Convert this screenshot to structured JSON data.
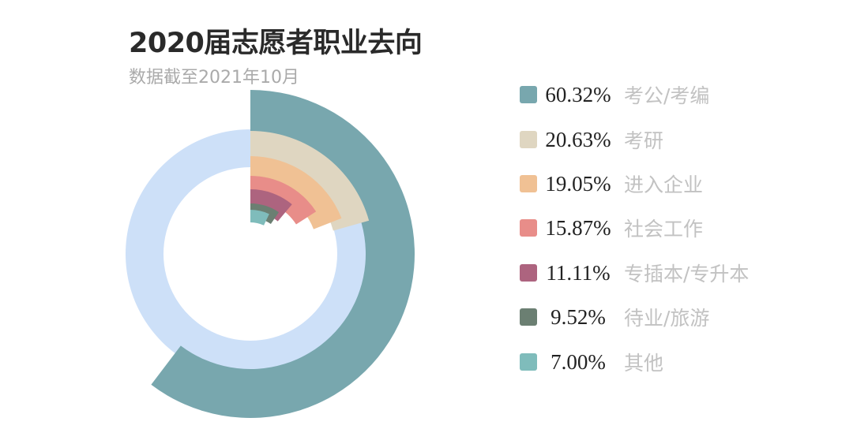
{
  "chart_data": {
    "type": "radial-bar",
    "title": "2020届志愿者职业去向",
    "subtitle": "数据截至2021年10月",
    "background_ring_color": "#cde0f8",
    "series": [
      {
        "name": "考公/考编",
        "value": 60.32,
        "label": "60.32%",
        "color": "#78a7ae"
      },
      {
        "name": "考研",
        "value": 20.63,
        "label": "20.63%",
        "color": "#dfd6c1"
      },
      {
        "name": "进入企业",
        "value": 19.05,
        "label": "19.05%",
        "color": "#f0c194"
      },
      {
        "name": "社会工作",
        "value": 15.87,
        "label": "15.87%",
        "color": "#e88d89"
      },
      {
        "name": "专插本/专升本",
        "value": 11.11,
        "label": "11.11%",
        "color": "#ad647f"
      },
      {
        "name": "待业/旅游",
        "value": 9.52,
        "label": "9.52%",
        "color": "#6b7f72"
      },
      {
        "name": "其他",
        "value": 7.0,
        "label": "7.00%",
        "color": "#7fbcbb"
      }
    ],
    "legend_position": "right"
  }
}
